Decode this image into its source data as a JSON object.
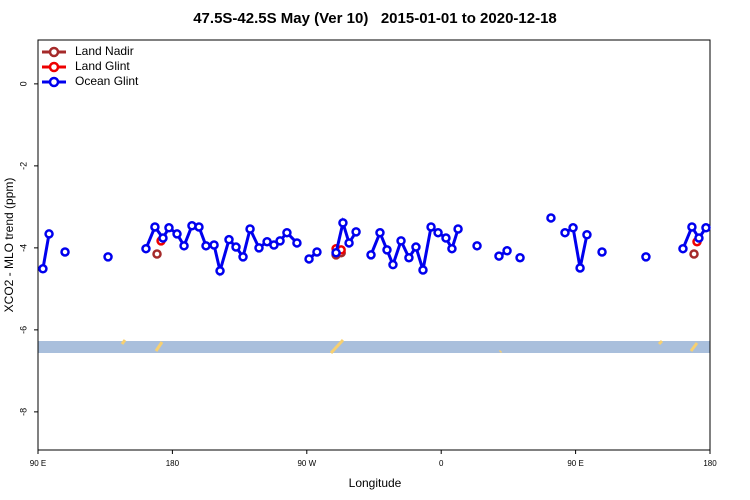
{
  "chart_data": {
    "type": "line",
    "title": "47.5S-42.5S May (Ver 10)   2015-01-01 to 2020-12-18",
    "xlabel": "Longitude",
    "ylabel": "XCO2 - MLO trend (ppm)",
    "xlim": [
      90,
      540
    ],
    "xticks": [
      {
        "value": 90,
        "label": "90 E"
      },
      {
        "value": 180,
        "label": "180"
      },
      {
        "value": 270,
        "label": "90 W"
      },
      {
        "value": 360,
        "label": "0"
      },
      {
        "value": 450,
        "label": "90 E"
      },
      {
        "value": 540,
        "label": "180"
      }
    ],
    "ylim": [
      -8.93,
      1.07
    ],
    "yticks": [
      0,
      -2,
      -4,
      -6,
      -8
    ],
    "legend": "top-left",
    "series": [
      {
        "name": "Land Nadir",
        "color": "#a52a2a",
        "x": [
          169.7,
          null,
          289.6,
          293.0,
          null,
          529.3
        ],
        "values": [
          -4.15,
          null,
          -4.17,
          -4.12,
          null,
          -4.15
        ]
      },
      {
        "name": "Land Glint",
        "color": "#ee0000",
        "x": [
          172.4,
          null,
          289.6,
          293.0,
          null,
          531.3
        ],
        "values": [
          -3.83,
          null,
          -4.02,
          -4.05,
          null,
          -3.85
        ]
      },
      {
        "name": "Ocean Glint",
        "color": "#0000ee",
        "x": [
          93.3,
          97.4,
          null,
          108.1,
          null,
          136.9,
          null,
          162.3,
          168.3,
          173.7,
          177.7,
          183.1,
          187.8,
          193.1,
          197.8,
          202.5,
          207.9,
          211.9,
          217.9,
          222.6,
          227.3,
          232.0,
          238.0,
          243.4,
          248.0,
          252.1,
          256.7,
          263.4,
          null,
          271.5,
          276.8,
          null,
          289.6,
          294.2,
          298.3,
          303.0,
          null,
          313.0,
          319.0,
          323.7,
          327.7,
          333.1,
          338.4,
          343.1,
          347.8,
          353.2,
          357.9,
          363.2,
          367.2,
          371.3,
          null,
          384.0,
          null,
          398.7,
          404.1,
          null,
          412.8,
          null,
          433.5,
          null,
          442.9,
          448.3,
          453.0,
          457.6,
          null,
          467.7,
          null,
          497.1,
          null,
          521.9,
          527.9,
          532.6,
          537.3
        ],
        "values": [
          -4.51,
          -3.66,
          null,
          -4.1,
          null,
          -4.22,
          null,
          -4.02,
          -3.49,
          -3.76,
          -3.51,
          -3.66,
          -3.95,
          -3.46,
          -3.49,
          -3.95,
          -3.93,
          -4.56,
          -3.8,
          -3.98,
          -4.22,
          -3.54,
          -4.0,
          -3.85,
          -3.93,
          -3.83,
          -3.63,
          -3.88,
          null,
          -4.27,
          -4.1,
          null,
          -4.12,
          -3.39,
          -3.88,
          -3.61,
          null,
          -4.17,
          -3.63,
          -4.05,
          -4.41,
          -3.83,
          -4.24,
          -3.98,
          -4.54,
          -3.49,
          -3.63,
          -3.76,
          -4.02,
          -3.54,
          null,
          -3.95,
          null,
          -4.2,
          -4.07,
          null,
          -4.24,
          null,
          -3.27,
          null,
          -3.63,
          -3.51,
          -4.49,
          -3.68,
          null,
          -4.1,
          null,
          -4.22,
          null,
          -4.02,
          -3.49,
          -3.76,
          -3.51
        ]
      }
    ]
  }
}
